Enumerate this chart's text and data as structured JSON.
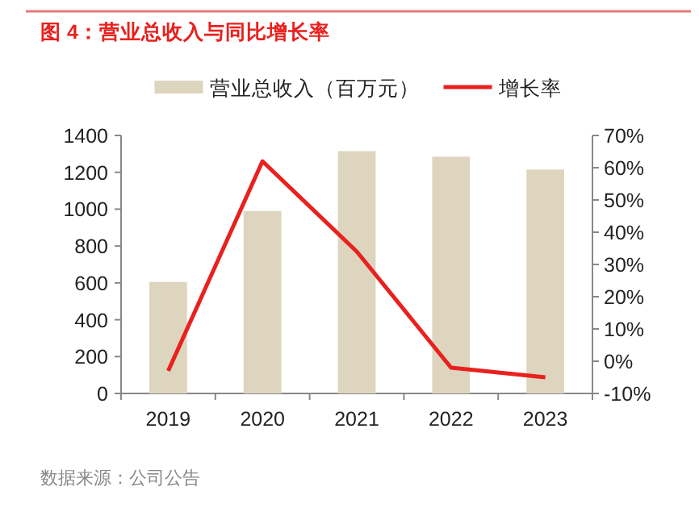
{
  "chart_data": {
    "type": "bar",
    "title": "图 4：营业总收入与同比增长率",
    "categories": [
      "2019",
      "2020",
      "2021",
      "2022",
      "2023"
    ],
    "series": [
      {
        "name": "营业总收入（百万元）",
        "color": "#ddd5be",
        "values": [
          605,
          990,
          1315,
          1285,
          1215
        ]
      },
      {
        "name": "增长率",
        "type": "line",
        "axis": "y2",
        "color": "#e8211e",
        "values": [
          -3,
          62,
          34,
          -2,
          -5
        ]
      }
    ],
    "ylim": [
      0,
      1400
    ],
    "yticks": [
      0,
      200,
      400,
      600,
      800,
      1000,
      1200,
      1400
    ],
    "y2lim": [
      -10,
      70
    ],
    "y2ticks": [
      {
        "value": -10,
        "label": "-10%"
      },
      {
        "value": 0,
        "label": "0%"
      },
      {
        "value": 10,
        "label": "10%"
      },
      {
        "value": 20,
        "label": "20%"
      },
      {
        "value": 30,
        "label": "30%"
      },
      {
        "value": 40,
        "label": "40%"
      },
      {
        "value": 50,
        "label": "50%"
      },
      {
        "value": 60,
        "label": "60%"
      },
      {
        "value": 70,
        "label": "70%"
      }
    ],
    "legend": "top",
    "grid": false,
    "marker": "none",
    "line_style": "solid",
    "annotations": [
      "数据来源：公司公告"
    ]
  }
}
